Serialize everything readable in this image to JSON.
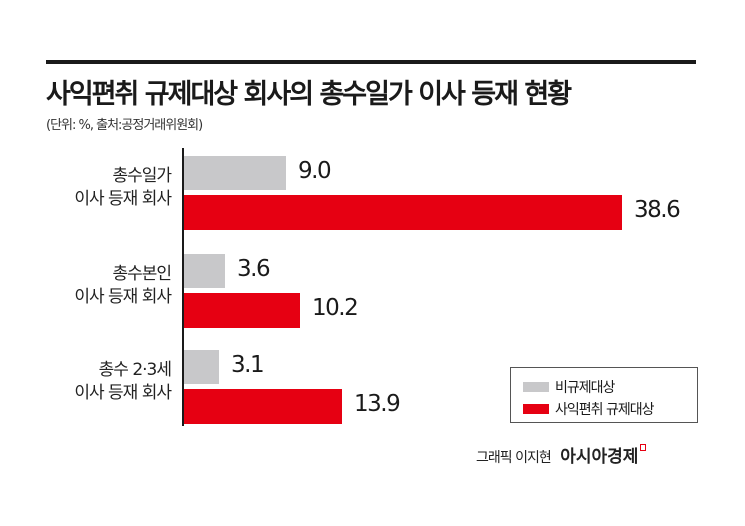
{
  "header": {
    "title": "사익편취 규제대상 회사의 총수일가 이사 등재 현황",
    "subtitle": "(단위: %, 출처:공정거래위원회)"
  },
  "legend": {
    "items": [
      {
        "label": "비규제대상",
        "color": "#c8c8ca"
      },
      {
        "label": "사익편취 규제대상",
        "color": "#e60012"
      }
    ]
  },
  "credit": {
    "text": "그래픽 이지현",
    "brand": "아시아경제"
  },
  "categories": [
    {
      "line1": "총수일가",
      "line2": "이사 등재 회사",
      "gray_label": "9.0",
      "red_label": "38.6"
    },
    {
      "line1": "총수본인",
      "line2": "이사 등재 회사",
      "gray_label": "3.6",
      "red_label": "10.2"
    },
    {
      "line1": "총수 2·3세",
      "line2": "이사 등재 회사",
      "gray_label": "3.1",
      "red_label": "13.9"
    }
  ],
  "chart_data": {
    "type": "bar",
    "orientation": "horizontal",
    "title": "사익편취 규제대상 회사의 총수일가 이사 등재 현황",
    "subtitle": "(단위: %, 출처:공정거래위원회)",
    "categories": [
      "총수일가 이사 등재 회사",
      "총수본인 이사 등재 회사",
      "총수 2·3세 이사 등재 회사"
    ],
    "series": [
      {
        "name": "비규제대상",
        "color": "#c8c8ca",
        "values": [
          9.0,
          3.6,
          3.1
        ]
      },
      {
        "name": "사익편취 규제대상",
        "color": "#e60012",
        "values": [
          38.6,
          10.2,
          13.9
        ]
      }
    ],
    "xlabel": "",
    "ylabel": "",
    "unit": "%",
    "grid": false,
    "legend_position": "lower right",
    "data_labels": true
  }
}
